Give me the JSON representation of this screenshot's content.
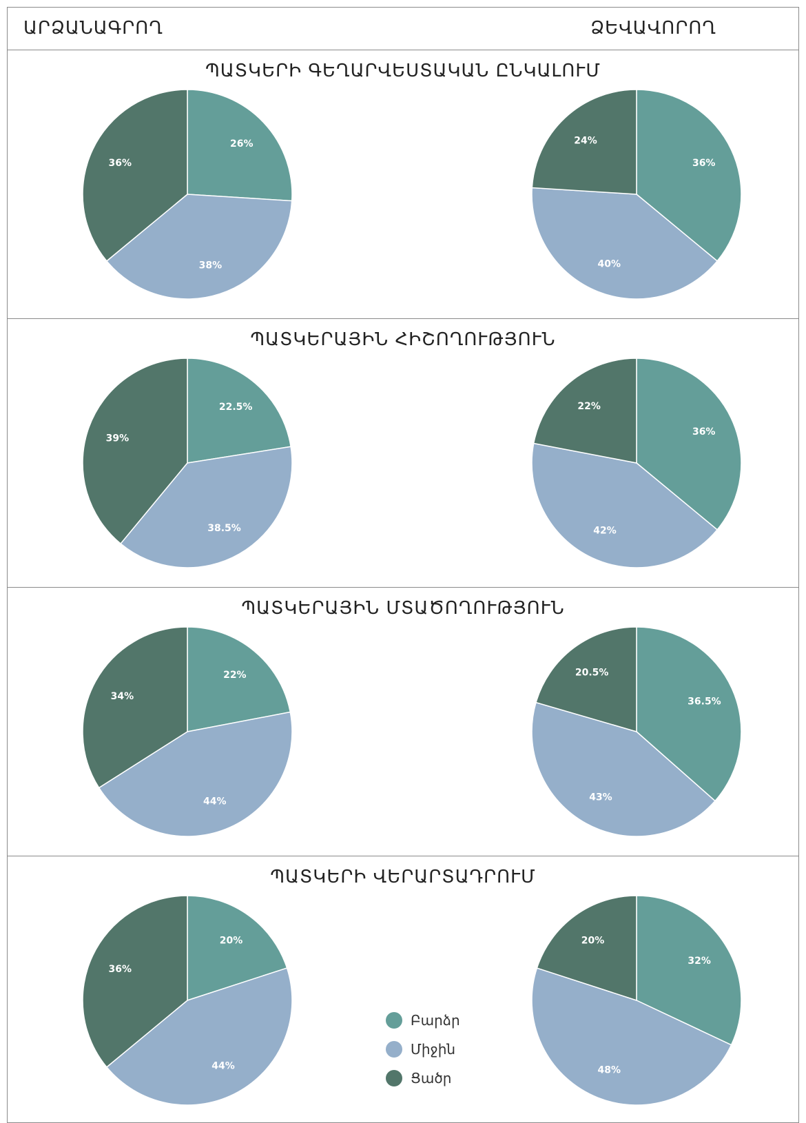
{
  "header": {
    "left": "ԱՐՁԱՆԱԳՐՈՂ",
    "right": "ՁԵՎԱՎՈՐՈՂ"
  },
  "colors": {
    "high": "#649e99",
    "mid": "#95afca",
    "low": "#52766a"
  },
  "legend": [
    {
      "label": "Բարձր",
      "color": "#649e99"
    },
    {
      "label": "Միջին",
      "color": "#95afca"
    },
    {
      "label": "Ցածր",
      "color": "#52766a"
    }
  ],
  "sections": [
    {
      "title": "ՊԱՏԿԵՐԻ ԳԵՂԱՐՎԵՍՏԱԿԱՆ ԸՆԿԱԼՈՒՄ"
    },
    {
      "title": "ՊԱՏԿԵՐԱՅԻՆ ՀԻՇՈՂՈՒԹՅՈՒՆ"
    },
    {
      "title": "ՊԱՏԿԵՐԱՅԻՆ ՄՏԱԾՈՂՈՒԹՅՈՒՆ"
    },
    {
      "title": "ՊԱՏԿԵՐԻ ՎԵՐԱՐՏԱԴՐՈՒՄ"
    }
  ],
  "chart_data": [
    {
      "type": "pie",
      "section": "ՊԱՏԿԵՐԻ ԳԵՂԱՐՎԵՍՏԱԿԱՆ ԸՆԿԱԼՈՒՄ",
      "group": "ԱՐՁԱՆԱԳՐՈՂ",
      "categories": [
        "Բարձր",
        "Միջին",
        "Ցածր"
      ],
      "values": [
        26,
        38,
        36
      ],
      "labels": [
        "26%",
        "38%",
        "36%"
      ]
    },
    {
      "type": "pie",
      "section": "ՊԱՏԿԵՐԻ ԳԵՂԱՐՎԵՍՏԱԿԱՆ ԸՆԿԱԼՈՒՄ",
      "group": "ՁԵՎԱՎՈՐՈՂ",
      "categories": [
        "Բարձր",
        "Միջին",
        "Ցածր"
      ],
      "values": [
        36,
        40,
        24
      ],
      "labels": [
        "36%",
        "40%",
        "24%"
      ]
    },
    {
      "type": "pie",
      "section": "ՊԱՏԿԵՐԱՅԻՆ ՀԻՇՈՂՈՒԹՅՈՒՆ",
      "group": "ԱՐՁԱՆԱԳՐՈՂ",
      "categories": [
        "Բարձր",
        "Միջին",
        "Ցածր"
      ],
      "values": [
        22.5,
        38.5,
        39
      ],
      "labels": [
        "22.5%",
        "38.5%",
        "39%"
      ]
    },
    {
      "type": "pie",
      "section": "ՊԱՏԿԵՐԱՅԻՆ ՀԻՇՈՂՈՒԹՅՈՒՆ",
      "group": "ՁԵՎԱՎՈՐՈՂ",
      "categories": [
        "Բարձր",
        "Միջին",
        "Ցածր"
      ],
      "values": [
        36,
        42,
        22
      ],
      "labels": [
        "36%",
        "42%",
        "22%"
      ]
    },
    {
      "type": "pie",
      "section": "ՊԱՏԿԵՐԱՅԻՆ ՄՏԱԾՈՂՈՒԹՅՈՒՆ",
      "group": "ԱՐՁԱՆԱԳՐՈՂ",
      "categories": [
        "Բարձր",
        "Միջին",
        "Ցածր"
      ],
      "values": [
        22,
        44,
        34
      ],
      "labels": [
        "22%",
        "44%",
        "34%"
      ]
    },
    {
      "type": "pie",
      "section": "ՊԱՏԿԵՐԱՅԻՆ ՄՏԱԾՈՂՈՒԹՅՈՒՆ",
      "group": "ՁԵՎԱՎՈՐՈՂ",
      "categories": [
        "Բարձր",
        "Միջին",
        "Ցածր"
      ],
      "values": [
        36.5,
        43,
        20.5
      ],
      "labels": [
        "36.5%",
        "43%",
        "20.5%"
      ]
    },
    {
      "type": "pie",
      "section": "ՊԱՏԿԵՐԻ ՎԵՐԱՐՏԱԴՐՈՒՄ",
      "group": "ԱՐՁԱՆԱԳՐՈՂ",
      "categories": [
        "Բարձր",
        "Միջին",
        "Ցածր"
      ],
      "values": [
        20,
        44,
        36
      ],
      "labels": [
        "20%",
        "44%",
        "36%"
      ]
    },
    {
      "type": "pie",
      "section": "ՊԱՏԿԵՐԻ ՎԵՐԱՐՏԱԴՐՈՒՄ",
      "group": "ՁԵՎԱՎՈՐՈՂ",
      "categories": [
        "Բարձր",
        "Միջին",
        "Ցածր"
      ],
      "values": [
        32,
        48,
        20
      ],
      "labels": [
        "32%",
        "48%",
        "20%"
      ]
    }
  ]
}
